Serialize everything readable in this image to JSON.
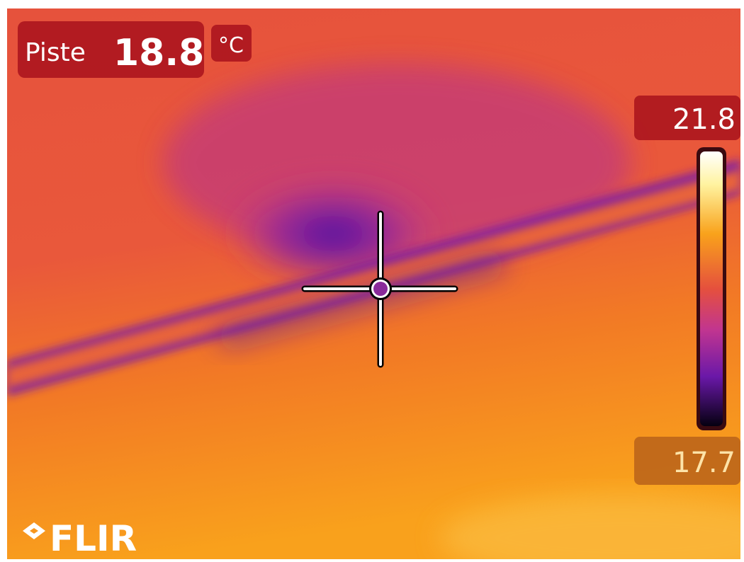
{
  "overlay": {
    "spot_label": "Piste",
    "spot_value": 18.8,
    "unit": "°C",
    "scale_max": 21.8,
    "scale_min": 17.7,
    "logo": "FLIR"
  }
}
